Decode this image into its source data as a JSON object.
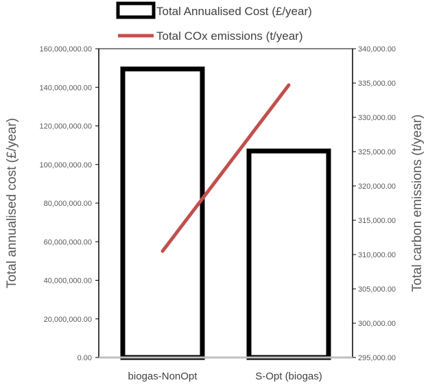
{
  "chart_data": {
    "type": "bar",
    "categories": [
      "biogas-NonOpt",
      "S-Opt (biogas)"
    ],
    "series": [
      {
        "name": "Total Annualised Cost (£/year)",
        "type": "bar",
        "axis": "left",
        "values": [
          149500000,
          107000000
        ],
        "color": "#000000"
      },
      {
        "name": "Total COx emissions (t/year)",
        "type": "line",
        "axis": "right",
        "values": [
          310500,
          334700
        ],
        "color": "#c0504d"
      }
    ],
    "ylabel": "Total annualised cost (£/year)",
    "y2label": "Total carbon emissions (t/year)",
    "ylim": [
      0,
      160000000
    ],
    "y2lim": [
      295000,
      340000
    ],
    "yticks": [
      "0.00",
      "20,000,000.00",
      "40,000,000.00",
      "60,000,000.00",
      "80,000,000.00",
      "100,000,000.00",
      "120,000,000.00",
      "140,000,000.00",
      "160,000,000.00"
    ],
    "y2ticks": [
      "295,000.00",
      "300,000.00",
      "305,000.00",
      "310,000.00",
      "315,000.00",
      "320,000.00",
      "325,000.00",
      "330,000.00",
      "335,000.00",
      "340,000.00"
    ],
    "legend_position": "top",
    "grid": false
  }
}
